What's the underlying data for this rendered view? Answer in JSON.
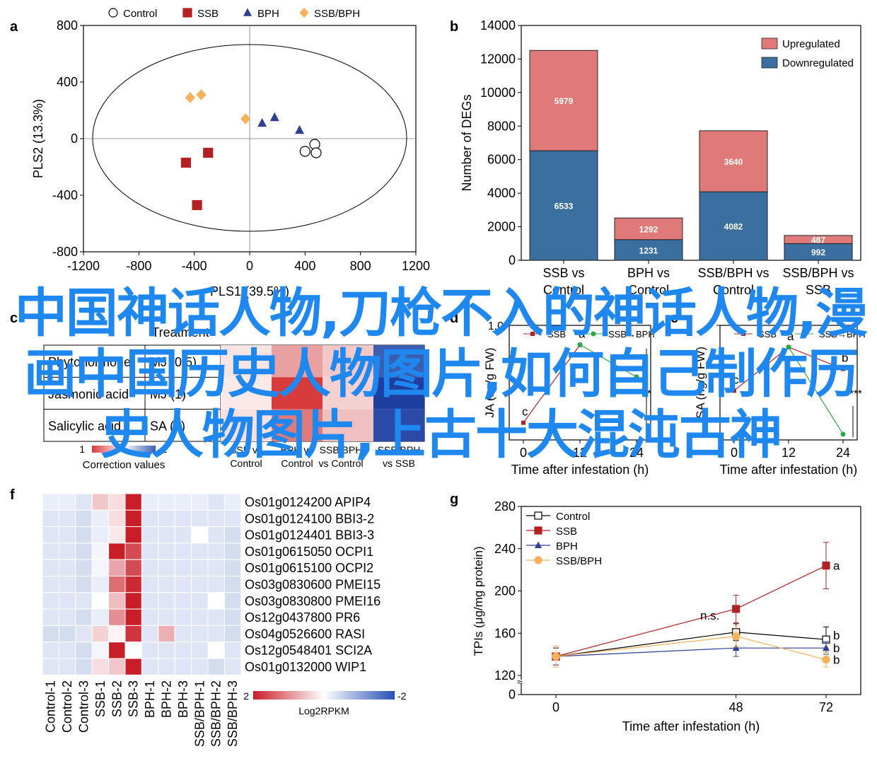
{
  "overlay_text": "中国神话人物,刀枪不入的神话人物,漫画中国历史人物图片,如何自己制作历史人物图片,上古十大混沌古神",
  "colors": {
    "control": "#000000",
    "ssb": "#b22222",
    "bph": "#2e3f94",
    "ssbbph": "#f5b25a",
    "up": "#e07a7a",
    "down": "#3a6fa0",
    "overlay": "#1e88f0"
  },
  "panel_labels": {
    "a": "a",
    "b": "b",
    "c": "c",
    "d": "d",
    "e": "e",
    "f": "f",
    "g": "g"
  },
  "chart_data": [
    {
      "panel": "a",
      "type": "scatter",
      "xlabel": "PLS1 (39.5%)",
      "ylabel": "PLS2 (13.3%)",
      "xlim": [
        -1200,
        1200
      ],
      "ylim": [
        -800,
        800
      ],
      "xticks": [
        "-1200",
        "-800",
        "-400",
        "0",
        "400",
        "800",
        "1200"
      ],
      "yticks": [
        "800",
        "400",
        "0",
        "-400",
        "-800"
      ],
      "legend": [
        {
          "name": "Control",
          "marker": "circle"
        },
        {
          "name": "SSB",
          "marker": "square"
        },
        {
          "name": "BPH",
          "marker": "triangle"
        },
        {
          "name": "SSB/BPH",
          "marker": "diamond"
        }
      ],
      "series": [
        {
          "name": "Control",
          "points": [
            [
              470,
              -40
            ],
            [
              400,
              -90
            ],
            [
              480,
              -100
            ]
          ]
        },
        {
          "name": "SSB",
          "points": [
            [
              -460,
              -170
            ],
            [
              -300,
              -100
            ],
            [
              -380,
              -470
            ]
          ]
        },
        {
          "name": "BPH",
          "points": [
            [
              90,
              110
            ],
            [
              180,
              150
            ],
            [
              360,
              60
            ]
          ]
        },
        {
          "name": "SSB/BPH",
          "points": [
            [
              -430,
              290
            ],
            [
              -350,
              310
            ],
            [
              -30,
              140
            ]
          ]
        }
      ]
    },
    {
      "panel": "b",
      "type": "bar",
      "stacked": true,
      "ylabel": "Number of DEGs",
      "ylim": [
        0,
        14000
      ],
      "yticks": [
        "0",
        "2000",
        "4000",
        "6000",
        "8000",
        "10000",
        "12000",
        "14000"
      ],
      "categories": [
        [
          "SSB vs",
          "Control"
        ],
        [
          "BPH vs",
          "Control"
        ],
        [
          "SSB/BPH vs",
          "Control"
        ],
        [
          "SSB/BPH vs",
          "SSB"
        ]
      ],
      "series": [
        {
          "name": "Downregulated",
          "values": [
            6533,
            1231,
            4082,
            992
          ]
        },
        {
          "name": "Upregulated",
          "values": [
            5979,
            1292,
            3640,
            487
          ]
        }
      ],
      "legend": [
        "Upregulated",
        "Downregulated"
      ]
    },
    {
      "panel": "c",
      "type": "heatmap",
      "header": "Treatment",
      "rows": [
        "Phytohormone",
        "MJ (0.5)",
        "Jasmonic acid",
        "MJ (1)",
        "Salicylic acid",
        "SA (2)"
      ],
      "columns": [
        "SSB vs\nControl",
        "BPH vs\nControl",
        "SSB/BPH\nvs Control",
        "SSB/BPH\nvs SSB"
      ],
      "scale_min": "1",
      "scale_max": "-1",
      "scale_label": "Correction values"
    },
    {
      "panel": "d",
      "type": "line",
      "ylabel": "JA (ng/g FW)",
      "xlabel": "Time after infestation (h)",
      "x": [
        0,
        12,
        24
      ],
      "xticks": [
        "0",
        "12",
        "24"
      ],
      "series": [
        {
          "name": "SSB",
          "values": [
            0.15,
            0.83,
            null
          ],
          "letters": [
            "c",
            "a",
            ""
          ]
        },
        {
          "name": "SSB→BPH",
          "values": [
            null,
            0.83,
            0.55
          ]
        }
      ],
      "ylim": [
        0,
        1
      ],
      "ytick_top": "1.0",
      "annotation": "*"
    },
    {
      "panel": "e",
      "type": "line",
      "ylabel": "SA (ng/g FW)",
      "xlabel": "Time after infestation (h)",
      "x": [
        0,
        12,
        24
      ],
      "xticks": [
        "0",
        "12",
        "24"
      ],
      "series": [
        {
          "name": "SSB",
          "values": [
            0.43,
            0.81,
            0.62
          ],
          "letters": [
            "c",
            "a",
            "b"
          ]
        },
        {
          "name": "SSB→BPH",
          "values": [
            null,
            0.81,
            0.05
          ]
        }
      ],
      "ylim": [
        0,
        1
      ],
      "annotation": "***"
    },
    {
      "panel": "f",
      "type": "heatmap",
      "columns": [
        "Control-1",
        "Control-2",
        "Control-3",
        "SSB-1",
        "SSB-2",
        "SSB-3",
        "BPH-1",
        "BPH-2",
        "BPH-3",
        "SSB/BPH-1",
        "SSB/BPH-2",
        "SSB/BPH-3"
      ],
      "rows": [
        "Os01g0124200 APIP4",
        "Os01g0124100 BBI3-2",
        "Os01g0124401 BBI3-3",
        "Os01g0615050 OCPI1",
        "Os01g0615100 OCPI2",
        "Os03g0830600 PMEI15",
        "Os03g0830800 PMEI16",
        "Os12g0437800 PR6",
        "Os04g0526600 RASI",
        "Os12g0548401 SCI2A",
        "Os01g0132000 WIP1"
      ],
      "values": [
        [
          -0.2,
          -0.2,
          -0.3,
          0.5,
          0.3,
          2.0,
          -0.2,
          -0.2,
          -0.2,
          -0.2,
          -0.3,
          -0.2
        ],
        [
          -0.3,
          -0.3,
          -0.4,
          -0.2,
          0.3,
          2.0,
          -0.3,
          -0.3,
          -0.3,
          -0.3,
          -0.3,
          -0.3
        ],
        [
          -0.3,
          -0.3,
          -0.4,
          -0.2,
          0.2,
          2.0,
          -0.3,
          -0.3,
          -0.3,
          0.0,
          -0.3,
          -0.4
        ],
        [
          -0.3,
          -0.3,
          -0.4,
          -0.1,
          2.0,
          1.6,
          -0.3,
          -0.3,
          -0.3,
          -0.3,
          -0.3,
          -0.4
        ],
        [
          -0.3,
          -0.3,
          -0.4,
          -0.1,
          0.8,
          1.6,
          -0.3,
          -0.3,
          -0.3,
          -0.3,
          -0.3,
          -0.4
        ],
        [
          -0.3,
          -0.3,
          -0.4,
          -0.2,
          1.3,
          1.9,
          -0.3,
          -0.3,
          -0.3,
          -0.3,
          -0.3,
          -0.4
        ],
        [
          -0.3,
          -0.3,
          -0.3,
          0.0,
          0.6,
          2.0,
          -0.3,
          -0.3,
          -0.3,
          -0.3,
          0.0,
          -0.4
        ],
        [
          -0.3,
          -0.3,
          -0.4,
          -0.2,
          1.0,
          2.0,
          -0.3,
          -0.3,
          -0.3,
          -0.3,
          -0.3,
          -0.4
        ],
        [
          -0.4,
          -0.4,
          -0.3,
          0.4,
          0.1,
          1.8,
          -0.3,
          0.7,
          -0.3,
          -0.3,
          -0.3,
          -0.4
        ],
        [
          -0.3,
          -0.3,
          -0.4,
          -0.1,
          2.0,
          0.0,
          -0.3,
          -0.3,
          -0.3,
          -0.3,
          0.0,
          -0.3
        ],
        [
          -0.3,
          -0.3,
          -0.4,
          0.3,
          0.5,
          2.0,
          -0.3,
          -0.3,
          -0.3,
          -0.3,
          -0.4,
          -0.3
        ]
      ],
      "scale_min": "2",
      "scale_max": "-2",
      "scale_label": "Log2RPKM"
    },
    {
      "panel": "g",
      "type": "line",
      "ylabel": "TPIs (μg/mg protein)",
      "xlabel": "Time after infestation (h)",
      "x": [
        0,
        48,
        72
      ],
      "xticks": [
        "0",
        "48",
        "72"
      ],
      "yticks": [
        "280",
        "240",
        "200",
        "160",
        "120"
      ],
      "ytick_zero": "0",
      "ylim": [
        120,
        280
      ],
      "axis_break": true,
      "series": [
        {
          "name": "Control",
          "marker": "open-square",
          "values": [
            138,
            161,
            154
          ],
          "err": [
            8,
            8,
            12
          ]
        },
        {
          "name": "SSB",
          "marker": "square",
          "values": [
            138,
            183,
            224
          ],
          "err": [
            8,
            13,
            22
          ]
        },
        {
          "name": "BPH",
          "marker": "triangle",
          "values": [
            138,
            146,
            146
          ],
          "err": [
            8,
            8,
            6
          ]
        },
        {
          "name": "SSB/BPH",
          "marker": "circle",
          "values": [
            138,
            157,
            135
          ],
          "err": [
            10,
            10,
            7
          ]
        }
      ],
      "annotation_48": "n.s.",
      "letters_72": [
        "a",
        "b",
        "b",
        "b"
      ]
    }
  ]
}
